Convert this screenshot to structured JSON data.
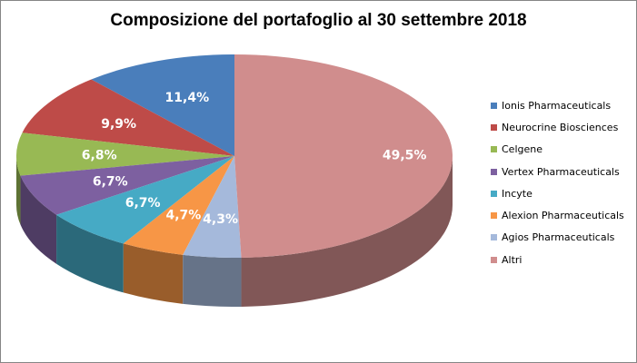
{
  "chart_data": {
    "type": "pie",
    "title": "Composizione del portafoglio al 30 settembre 2018",
    "legend_position": "right",
    "slices": [
      {
        "label": "Ionis Pharmaceuticals",
        "value": 11.4,
        "value_label": "11,4%",
        "color": "#4A7EBB"
      },
      {
        "label": "Neurocrine Biosciences",
        "value": 9.9,
        "value_label": "9,9%",
        "color": "#BE4B48"
      },
      {
        "label": "Celgene",
        "value": 6.8,
        "value_label": "6,8%",
        "color": "#98B954"
      },
      {
        "label": "Vertex Pharmaceuticals",
        "value": 6.7,
        "value_label": "6,7%",
        "color": "#7D60A0"
      },
      {
        "label": "Incyte",
        "value": 6.7,
        "value_label": "6,7%",
        "color": "#46AAC5"
      },
      {
        "label": "Alexion Pharmaceuticals",
        "value": 4.7,
        "value_label": "4,7%",
        "color": "#F79646"
      },
      {
        "label": "Agios Pharmaceuticals",
        "value": 4.3,
        "value_label": "4,3%",
        "color": "#A5B9DB"
      },
      {
        "label": "Altri",
        "value": 49.5,
        "value_label": "49,5%",
        "color": "#D08D8D"
      }
    ]
  }
}
